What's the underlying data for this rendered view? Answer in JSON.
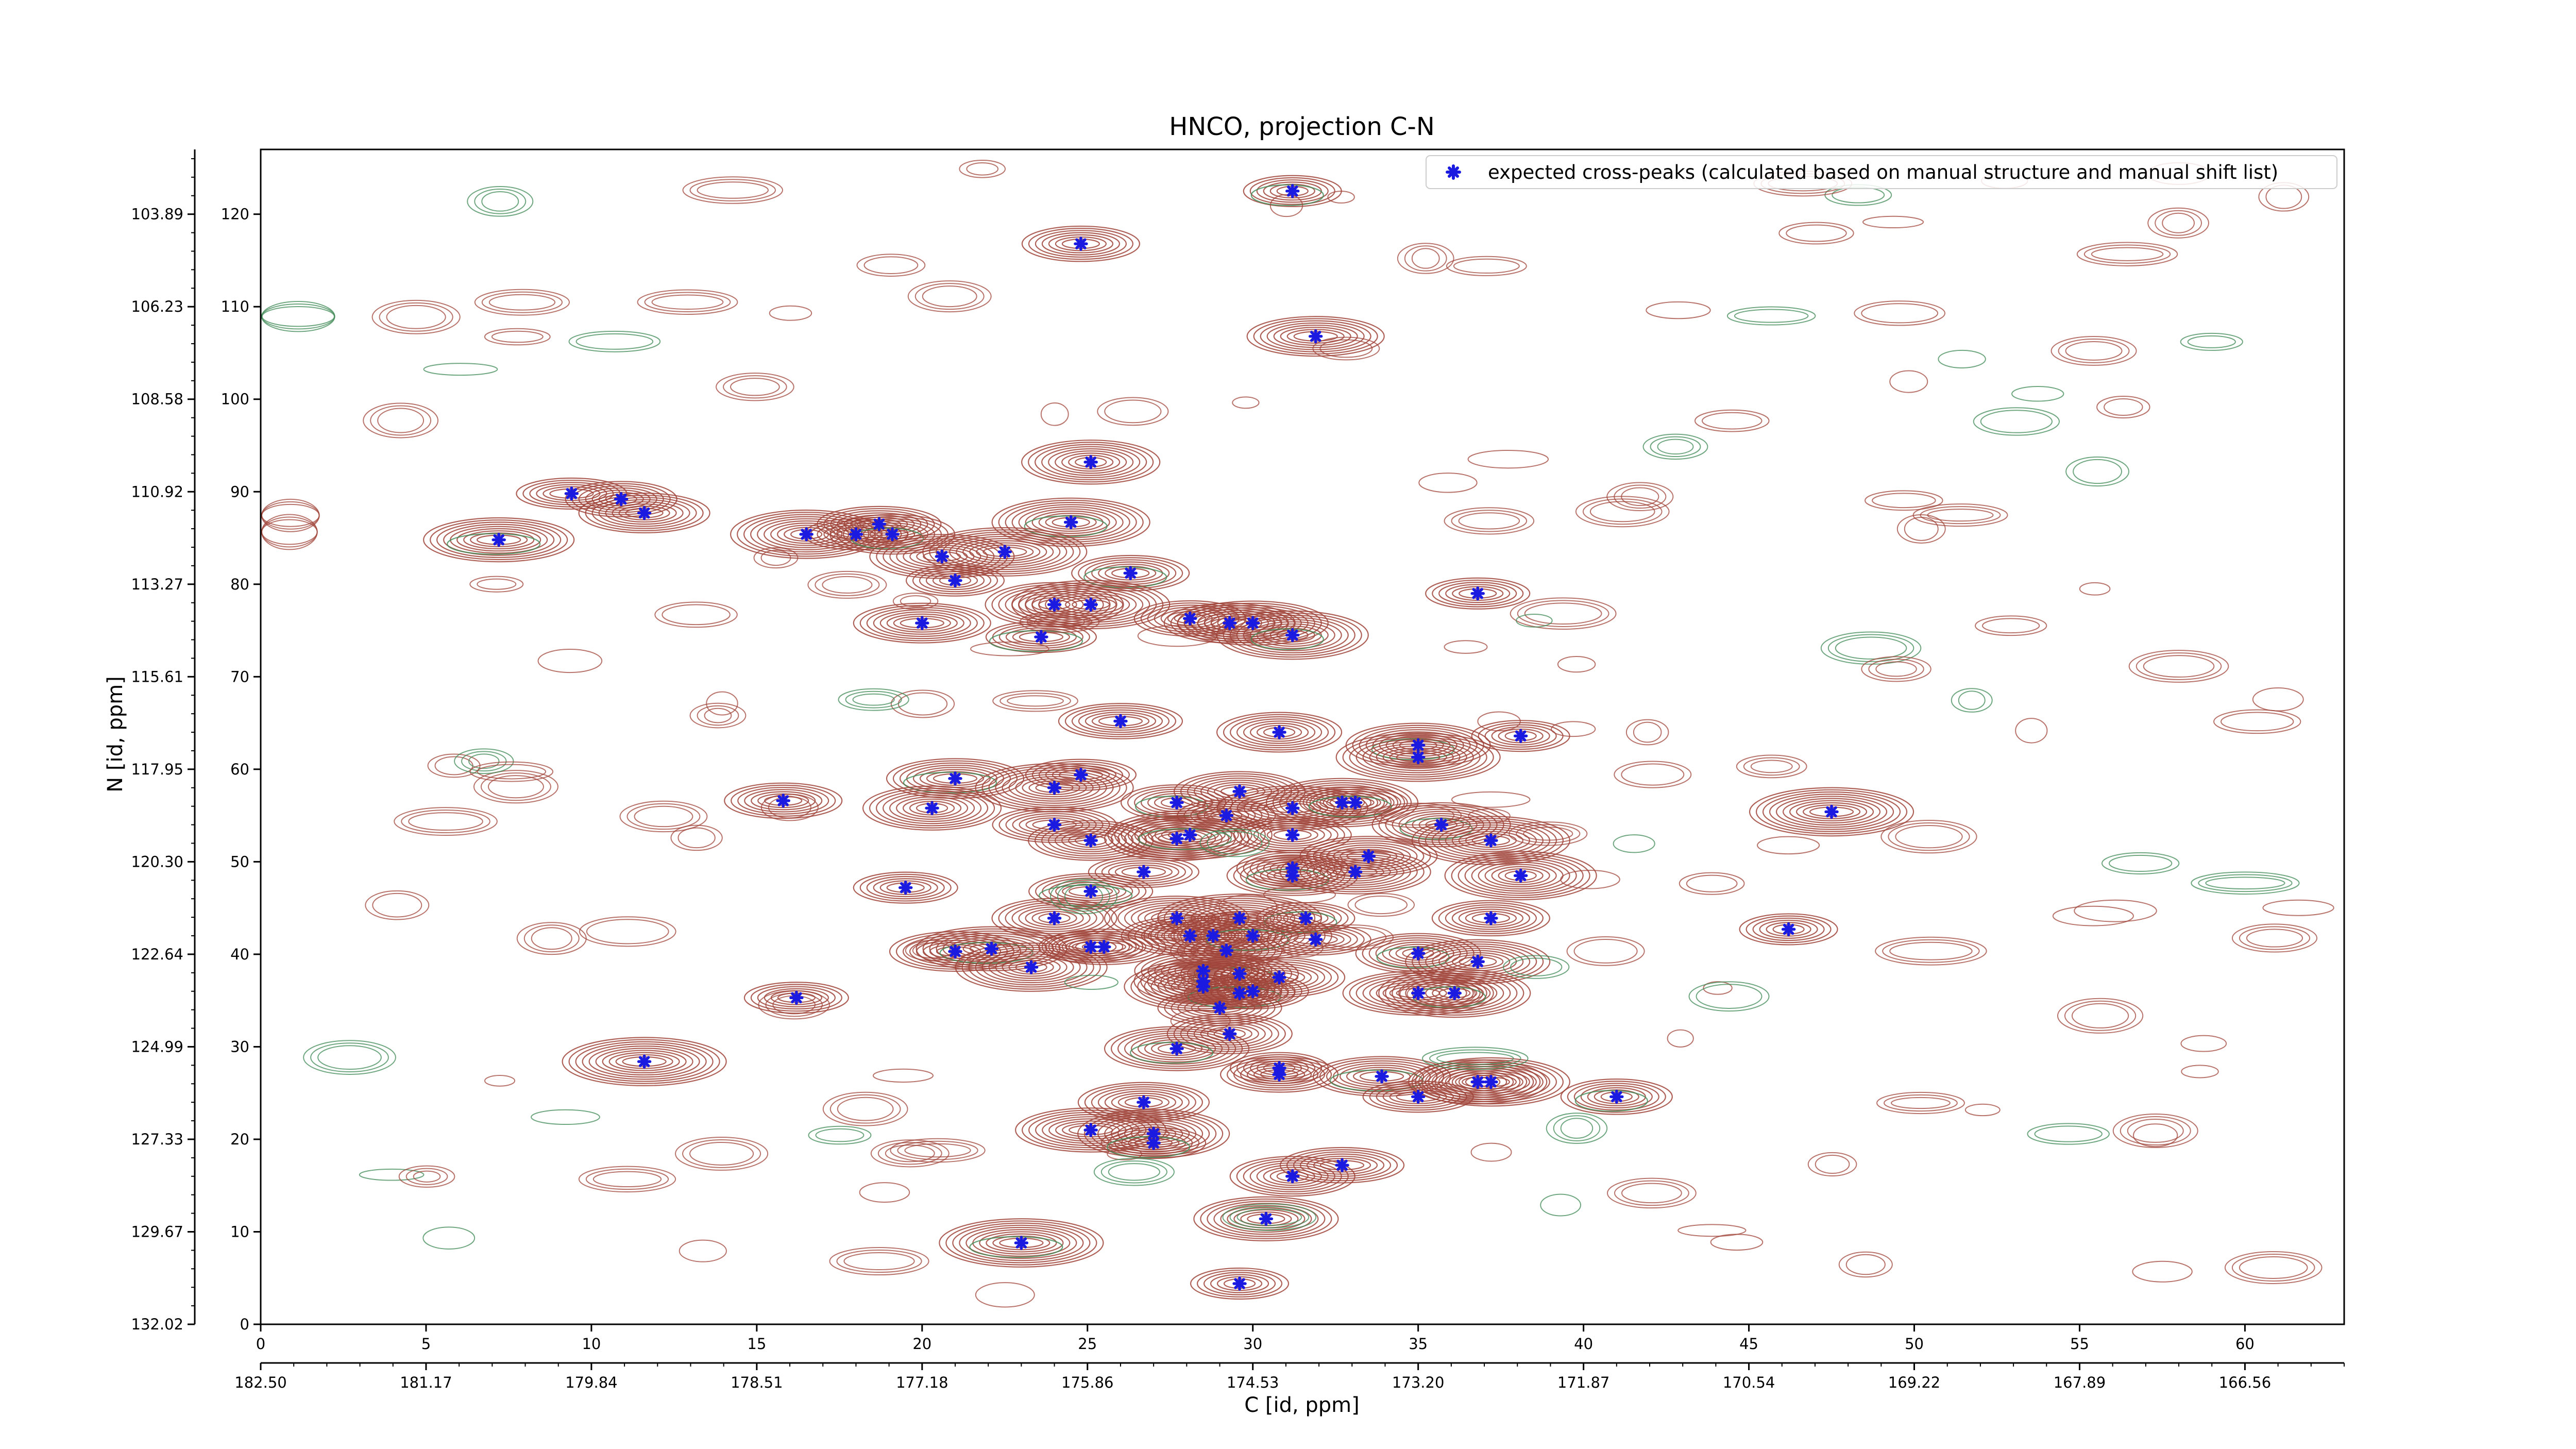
{
  "chart_data": {
    "type": "scatter",
    "title": "HNCO, projection C-N",
    "xlabel": "C [id, ppm]",
    "ylabel": "N [id, ppm]",
    "xlim": [
      0,
      63
    ],
    "ylim": [
      0,
      127
    ],
    "x_ticks": [
      "0",
      "5",
      "10",
      "15",
      "20",
      "25",
      "30",
      "35",
      "40",
      "45",
      "50",
      "55",
      "60"
    ],
    "y_ticks": [
      "0",
      "10",
      "20",
      "30",
      "40",
      "50",
      "60",
      "70",
      "80",
      "90",
      "100",
      "110",
      "120"
    ],
    "x_ppm_ticks": [
      "182.50",
      "181.17",
      "179.84",
      "178.51",
      "177.18",
      "175.86",
      "174.53",
      "173.20",
      "171.87",
      "170.54",
      "169.22",
      "167.89",
      "166.56"
    ],
    "y_ppm_ticks": [
      "132.02",
      "129.67",
      "127.33",
      "124.99",
      "122.64",
      "120.30",
      "117.95",
      "115.61",
      "113.27",
      "110.92",
      "108.58",
      "106.23",
      "103.89"
    ],
    "legend": {
      "label": "expected cross-peaks (calculated based on manual structure and manual shift list)",
      "placement": "top-right"
    },
    "colors": {
      "positive_contour": "#a0443a",
      "negative_contour": "#3f8a55",
      "marker": "#1a1ae0"
    },
    "series": [
      {
        "name": "expected cross-peaks (calculated based on manual structure and manual shift list)",
        "points": [
          [
            31.2,
            122.5
          ],
          [
            24.8,
            116.8
          ],
          [
            31.9,
            106.8
          ],
          [
            25.1,
            93.2
          ],
          [
            24.5,
            86.7
          ],
          [
            9.4,
            89.8
          ],
          [
            10.9,
            89.2
          ],
          [
            11.6,
            87.7
          ],
          [
            7.2,
            84.8
          ],
          [
            16.5,
            85.4
          ],
          [
            18.0,
            85.4
          ],
          [
            18.7,
            86.5
          ],
          [
            19.1,
            85.4
          ],
          [
            20.6,
            83.0
          ],
          [
            22.5,
            83.5
          ],
          [
            21.0,
            80.4
          ],
          [
            26.3,
            81.2
          ],
          [
            20.0,
            75.8
          ],
          [
            24.0,
            77.8
          ],
          [
            25.1,
            77.8
          ],
          [
            23.6,
            74.3
          ],
          [
            28.1,
            76.3
          ],
          [
            29.3,
            75.8
          ],
          [
            30.0,
            75.8
          ],
          [
            31.2,
            74.5
          ],
          [
            36.8,
            79.0
          ],
          [
            26.0,
            65.2
          ],
          [
            30.8,
            64.0
          ],
          [
            35.0,
            62.6
          ],
          [
            35.0,
            61.3
          ],
          [
            38.1,
            63.6
          ],
          [
            15.8,
            56.6
          ],
          [
            21.0,
            59.0
          ],
          [
            20.3,
            55.8
          ],
          [
            24.0,
            58.0
          ],
          [
            24.8,
            59.4
          ],
          [
            27.7,
            56.4
          ],
          [
            29.6,
            57.6
          ],
          [
            31.2,
            55.8
          ],
          [
            32.7,
            56.4
          ],
          [
            33.1,
            56.4
          ],
          [
            24.0,
            54.0
          ],
          [
            25.1,
            52.3
          ],
          [
            27.7,
            52.5
          ],
          [
            28.1,
            52.9
          ],
          [
            29.2,
            55.0
          ],
          [
            31.2,
            52.9
          ],
          [
            33.5,
            50.6
          ],
          [
            35.7,
            54.0
          ],
          [
            37.2,
            52.3
          ],
          [
            26.7,
            48.9
          ],
          [
            31.2,
            49.3
          ],
          [
            31.2,
            48.5
          ],
          [
            33.1,
            48.9
          ],
          [
            38.1,
            48.5
          ],
          [
            19.5,
            47.2
          ],
          [
            25.1,
            46.8
          ],
          [
            24.0,
            43.9
          ],
          [
            27.7,
            43.9
          ],
          [
            29.6,
            43.9
          ],
          [
            31.6,
            43.9
          ],
          [
            37.2,
            43.9
          ],
          [
            28.1,
            42.0
          ],
          [
            28.8,
            42.0
          ],
          [
            30.0,
            42.0
          ],
          [
            31.9,
            41.6
          ],
          [
            29.2,
            40.4
          ],
          [
            21.0,
            40.3
          ],
          [
            22.1,
            40.6
          ],
          [
            23.3,
            38.6
          ],
          [
            25.1,
            40.8
          ],
          [
            25.5,
            40.8
          ],
          [
            35.0,
            40.1
          ],
          [
            36.8,
            39.2
          ],
          [
            47.5,
            55.4
          ],
          [
            46.2,
            42.7
          ],
          [
            29.6,
            37.9
          ],
          [
            28.5,
            38.2
          ],
          [
            28.5,
            37.1
          ],
          [
            28.5,
            36.5
          ],
          [
            29.6,
            35.8
          ],
          [
            30.0,
            36.0
          ],
          [
            30.8,
            37.5
          ],
          [
            35.0,
            35.8
          ],
          [
            36.1,
            35.8
          ],
          [
            16.2,
            35.3
          ],
          [
            29.0,
            34.2
          ],
          [
            29.3,
            31.4
          ],
          [
            27.7,
            29.8
          ],
          [
            11.6,
            28.4
          ],
          [
            30.8,
            27.7
          ],
          [
            30.8,
            27.0
          ],
          [
            33.9,
            26.8
          ],
          [
            36.8,
            26.2
          ],
          [
            37.2,
            26.2
          ],
          [
            35.0,
            24.6
          ],
          [
            41.0,
            24.6
          ],
          [
            26.7,
            24.0
          ],
          [
            25.1,
            21.0
          ],
          [
            27.0,
            20.6
          ],
          [
            27.0,
            19.6
          ],
          [
            32.7,
            17.2
          ],
          [
            31.2,
            16.0
          ],
          [
            30.4,
            11.4
          ],
          [
            23.0,
            8.8
          ],
          [
            29.6,
            4.4
          ]
        ]
      }
    ],
    "grid": false
  }
}
